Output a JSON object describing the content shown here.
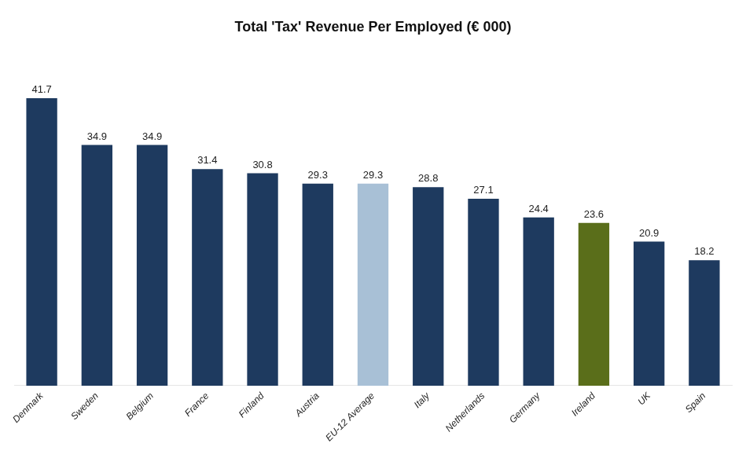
{
  "chart_data": {
    "type": "bar",
    "title": "Total 'Tax' Revenue Per Employed (€ 000)",
    "categories": [
      "Denmark",
      "Sweden",
      "Belgium",
      "France",
      "Finland",
      "Austria",
      "EU-12 Average",
      "Italy",
      "Netherlands",
      "Germany",
      "Ireland",
      "UK",
      "Spain"
    ],
    "values": [
      41.7,
      34.9,
      34.9,
      31.4,
      30.8,
      29.3,
      29.3,
      28.8,
      27.1,
      24.4,
      23.6,
      20.9,
      18.2
    ],
    "colors": [
      "#1e3a5f",
      "#1e3a5f",
      "#1e3a5f",
      "#1e3a5f",
      "#1e3a5f",
      "#1e3a5f",
      "#a8c0d6",
      "#1e3a5f",
      "#1e3a5f",
      "#1e3a5f",
      "#5a6e1a",
      "#1e3a5f",
      "#1e3a5f"
    ],
    "ylim": [
      0,
      48
    ],
    "grid": false,
    "data_labels": true,
    "tick_labels": "x"
  }
}
